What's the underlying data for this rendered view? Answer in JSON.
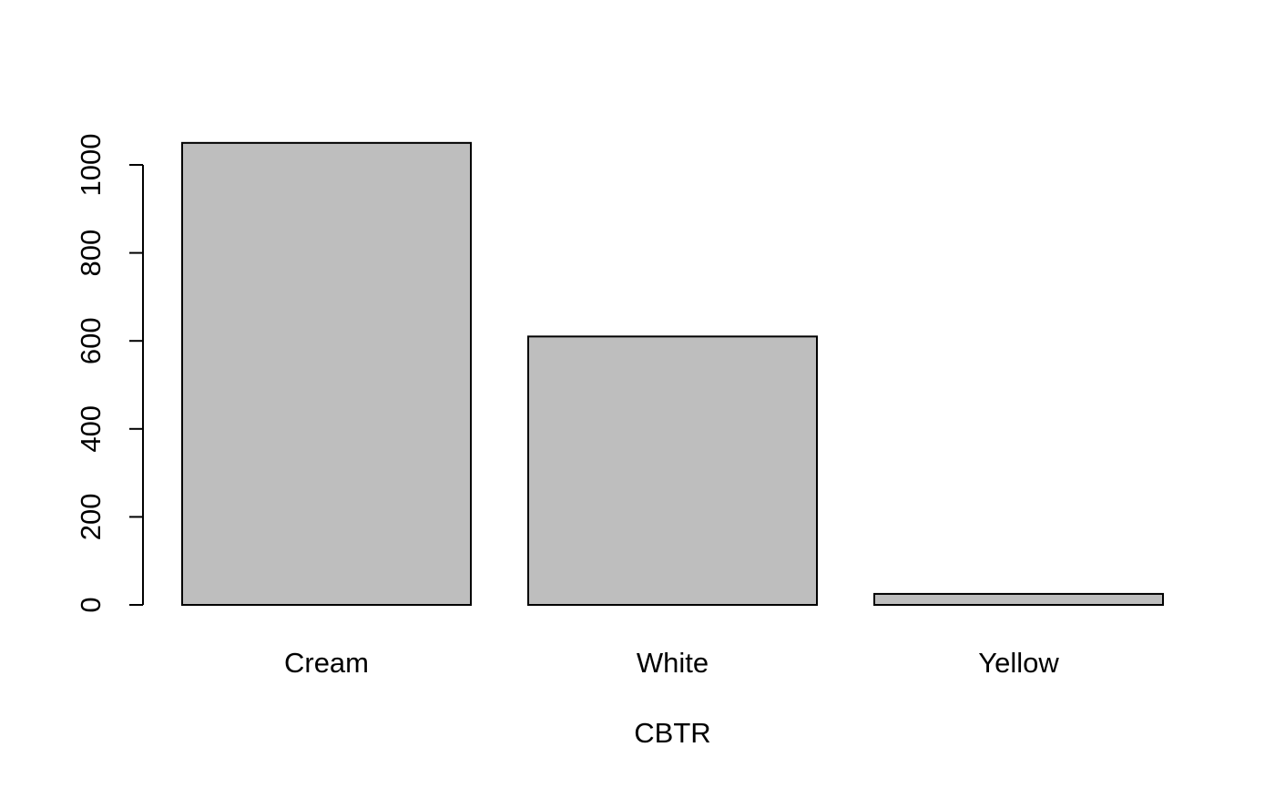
{
  "chart_data": {
    "type": "bar",
    "categories": [
      "Cream",
      "White",
      "Yellow"
    ],
    "values": [
      1050,
      610,
      25
    ],
    "title": "",
    "xlabel": "CBTR",
    "ylabel": "",
    "ylim": [
      0,
      1000
    ],
    "yticks": [
      0,
      200,
      400,
      600,
      800,
      1000
    ],
    "yticklabels": [
      "0",
      "200",
      "400",
      "600",
      "800",
      "1000"
    ],
    "grid": false,
    "legend": "none",
    "bar_color": "#bebebe",
    "outline_color": "#000000"
  }
}
